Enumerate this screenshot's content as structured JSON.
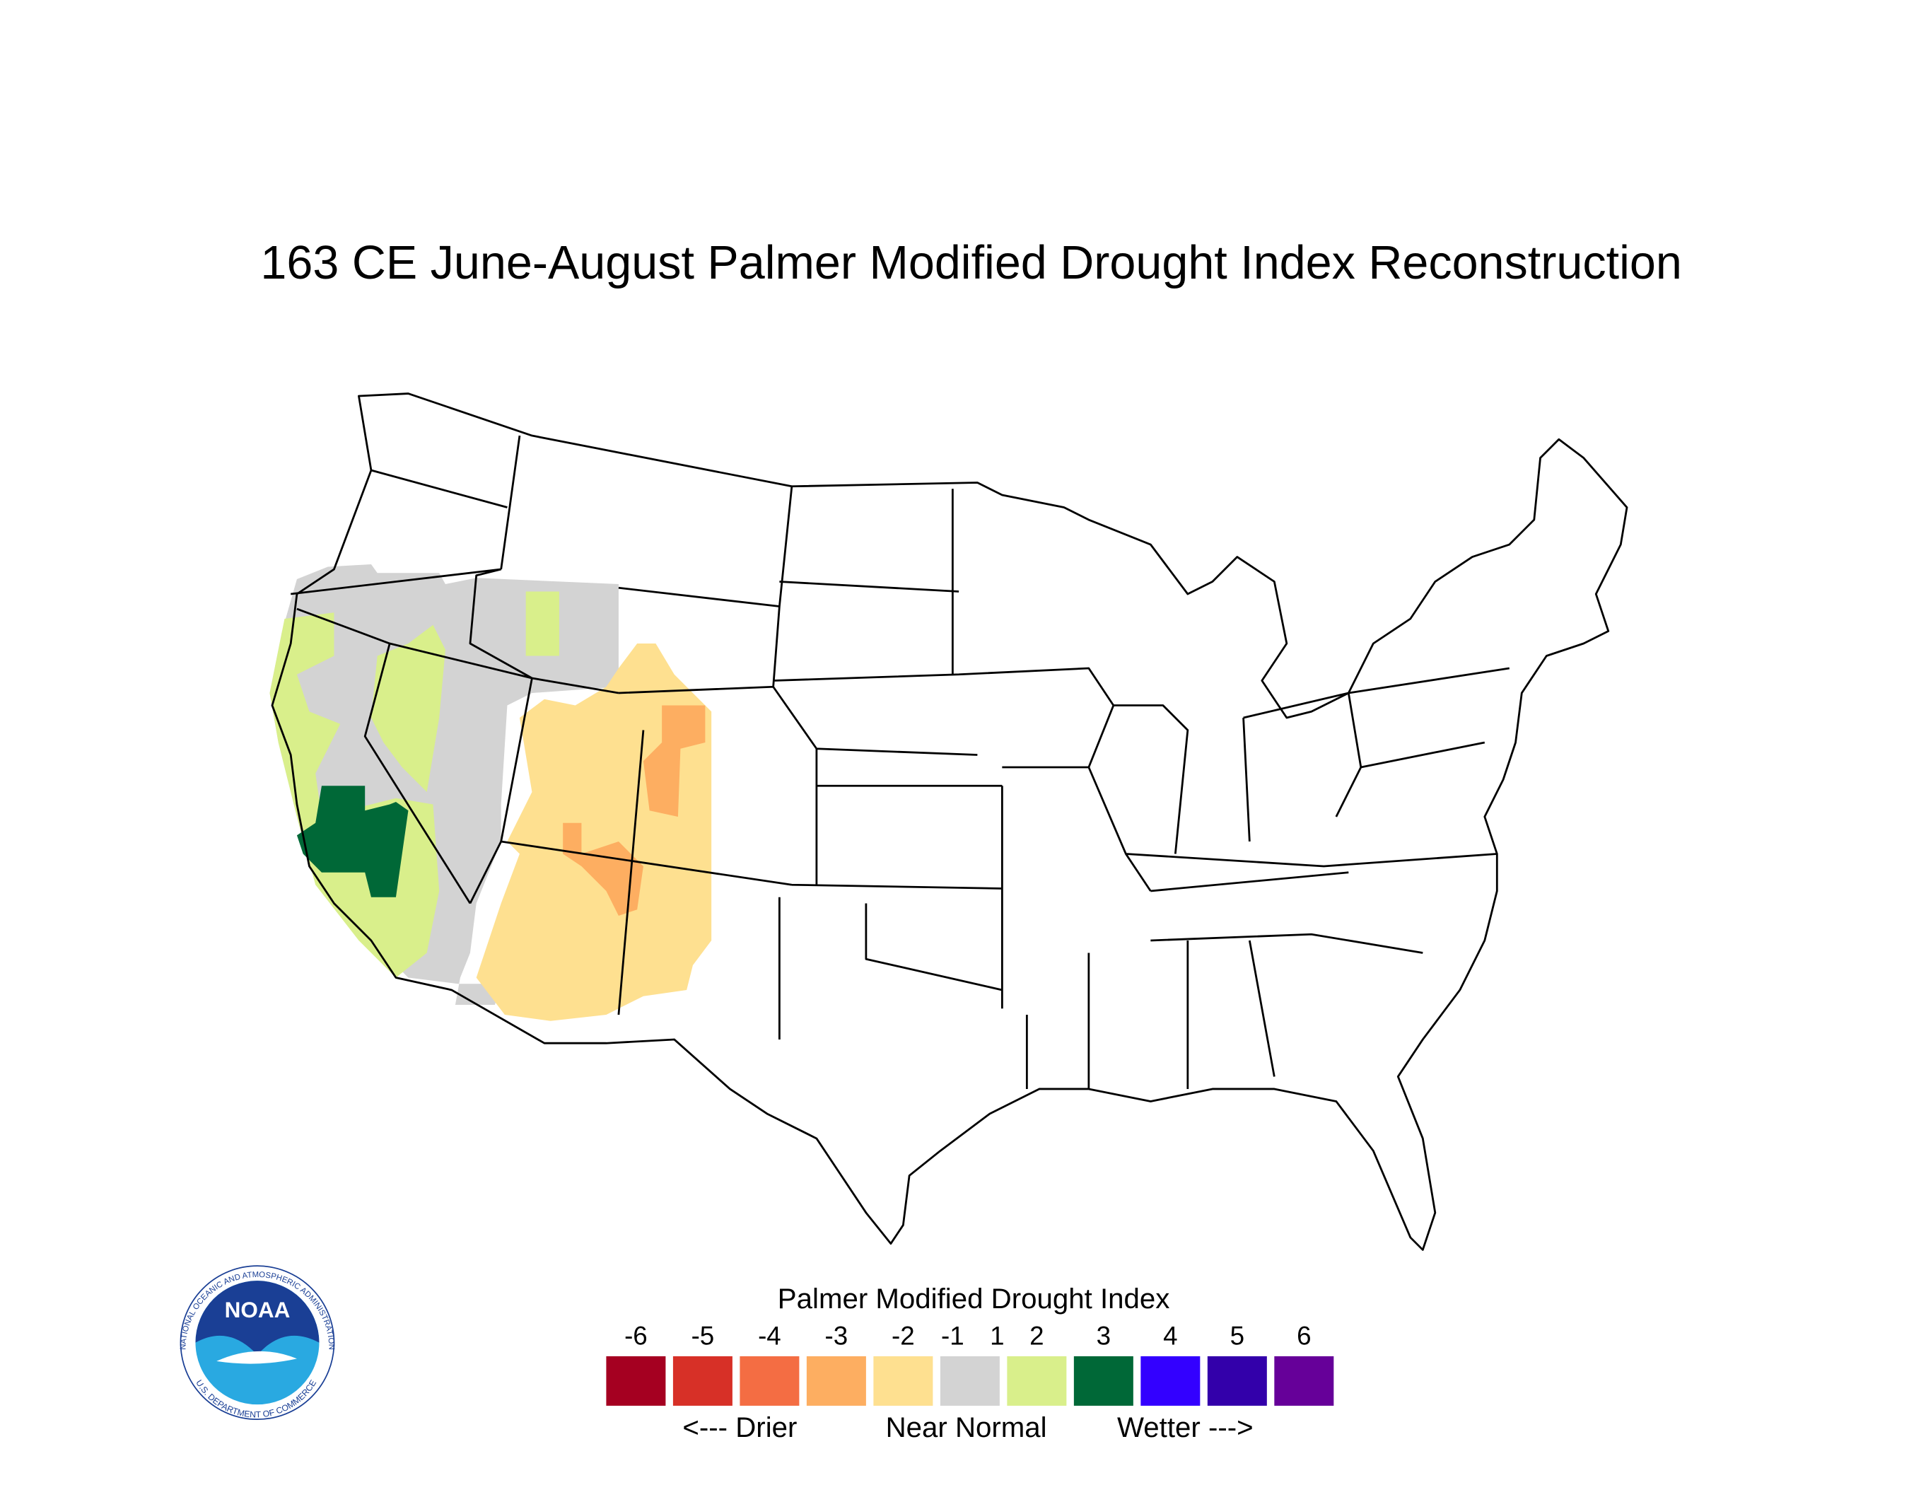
{
  "title": "163 CE  June-August  Palmer Modified Drought Index Reconstruction",
  "legend": {
    "title": "Palmer Modified Drought Index",
    "labels": [
      -6,
      -5,
      -4,
      -3,
      -2,
      -1,
      1,
      2,
      3,
      4,
      5,
      6
    ],
    "colors": [
      "#a50021",
      "#d73027",
      "#f46d43",
      "#fdae61",
      "#fee090",
      "#d3d3d3",
      "#d9ef8b",
      "#006837",
      "#3300ff",
      "#3300aa",
      "#660099"
    ],
    "drier": "<--- Drier",
    "normal": "Near Normal",
    "wetter": "Wetter --->"
  },
  "logo": {
    "name": "NOAA",
    "top_text": "NATIONAL OCEANIC AND ATMOSPHERIC ADMINISTRATION",
    "bottom_text": "U.S. DEPARTMENT OF COMMERCE"
  }
}
